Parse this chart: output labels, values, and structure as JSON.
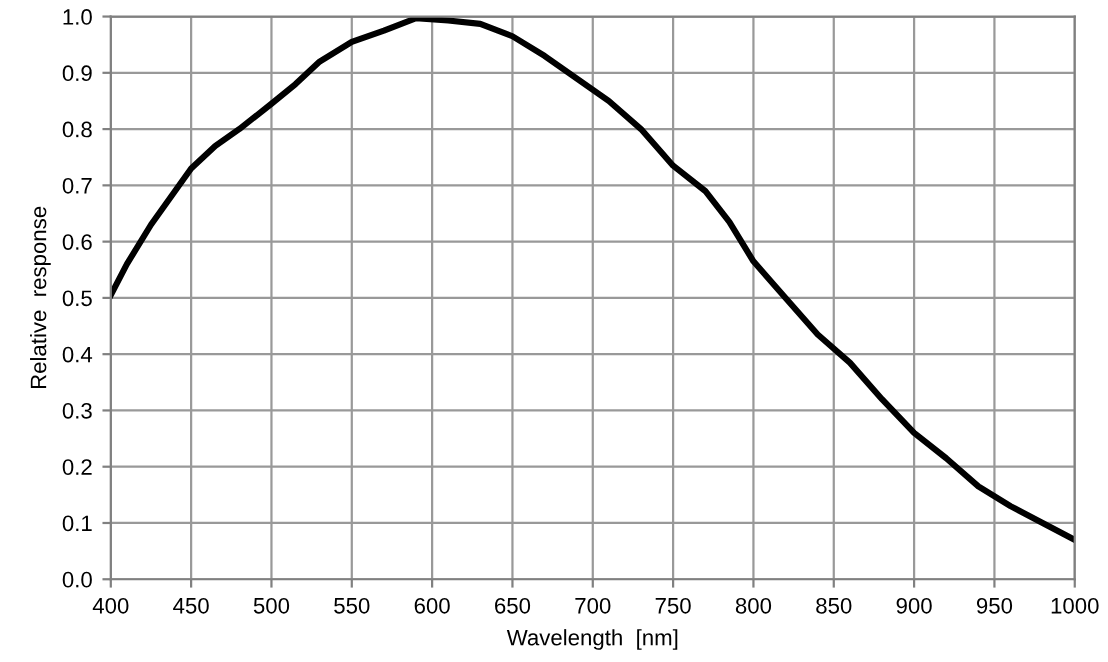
{
  "chart_data": {
    "type": "line",
    "xlabel": "Wavelength  [nm]",
    "ylabel": "Relative  response",
    "x": [
      400,
      410,
      425,
      440,
      450,
      465,
      480,
      500,
      515,
      530,
      550,
      570,
      590,
      610,
      630,
      650,
      670,
      690,
      710,
      730,
      750,
      770,
      785,
      800,
      820,
      840,
      860,
      880,
      900,
      920,
      940,
      960,
      980,
      1000
    ],
    "series": [
      {
        "color": "#000000",
        "values": [
          0.505,
          0.56,
          0.63,
          0.69,
          0.73,
          0.77,
          0.8,
          0.845,
          0.88,
          0.92,
          0.955,
          0.975,
          0.997,
          0.993,
          0.987,
          0.965,
          0.93,
          0.89,
          0.85,
          0.8,
          0.735,
          0.69,
          0.635,
          0.565,
          0.5,
          0.435,
          0.385,
          0.32,
          0.26,
          0.215,
          0.165,
          0.13,
          0.1,
          0.07
        ]
      }
    ],
    "xlim": [
      400,
      1000
    ],
    "xticks": [
      400,
      450,
      500,
      550,
      600,
      650,
      700,
      750,
      800,
      850,
      900,
      950,
      1000
    ],
    "ylim": [
      0.0,
      1.0
    ],
    "yticks": [
      {
        "value": 0,
        "label": "0.0"
      },
      0.1,
      0.2,
      0.3,
      0.4,
      0.5,
      0.6,
      0.7,
      0.8,
      0.9,
      {
        "value": 1,
        "label": "1.0"
      }
    ],
    "grid": true,
    "legend": false,
    "marker": "none",
    "line_style": "solid"
  }
}
